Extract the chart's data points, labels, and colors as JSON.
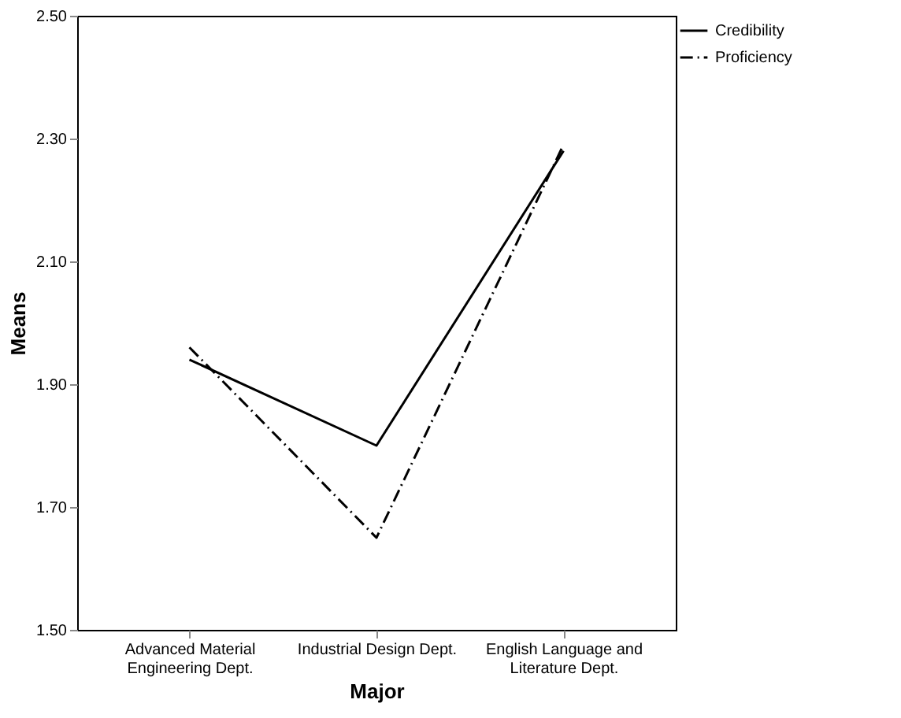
{
  "chart_data": {
    "type": "line",
    "xlabel": "Major",
    "ylabel": "Means",
    "categories": [
      "Advanced Material\nEngineering Dept.",
      "Industrial Design Dept.",
      "English Language and\nLiterature Dept."
    ],
    "series": [
      {
        "name": "Credibility",
        "color": "#000000",
        "line_style": "solid",
        "values": [
          1.94,
          1.8,
          2.28
        ]
      },
      {
        "name": "Proficiency",
        "color": "#000000",
        "line_style": "dashed",
        "values": [
          1.96,
          1.65,
          2.29
        ]
      }
    ],
    "ylim": [
      1.5,
      2.5
    ],
    "yticks": [
      {
        "value": 1.5,
        "label": "1.50"
      },
      {
        "value": 1.7,
        "label": "1.70"
      },
      {
        "value": 1.9,
        "label": "1.90"
      },
      {
        "value": 2.1,
        "label": "2.10"
      },
      {
        "value": 2.3,
        "label": "2.30"
      },
      {
        "value": 2.5,
        "label": "2.50"
      }
    ],
    "grid": false,
    "legend": "top right",
    "marker": "none"
  }
}
